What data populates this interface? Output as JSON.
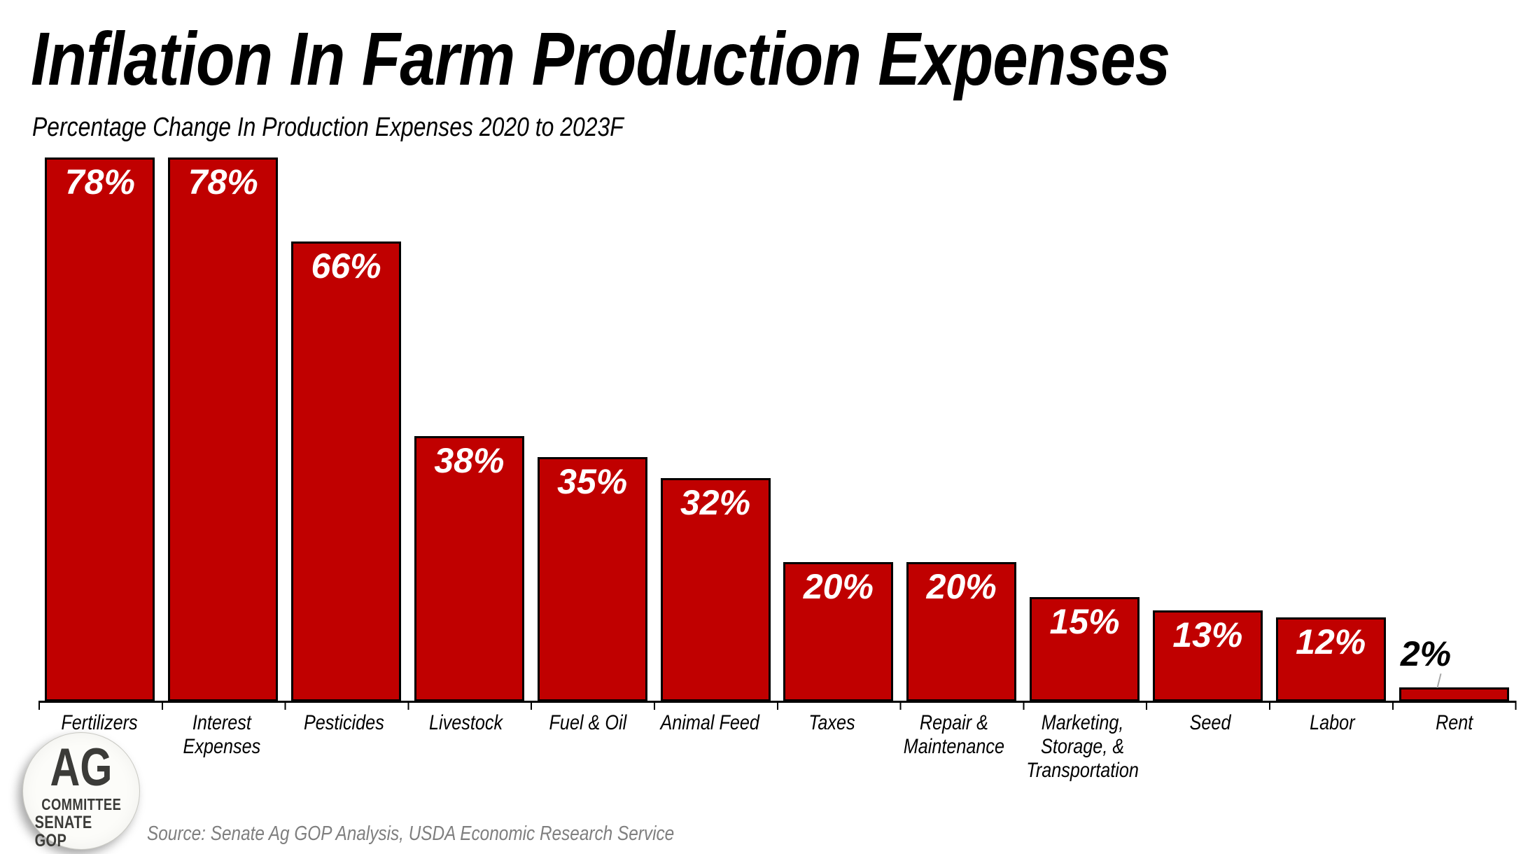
{
  "header": {
    "title": "Inflation In Farm Production Expenses",
    "subtitle": "Percentage Change In Production Expenses 2020 to 2023F"
  },
  "chart_data": {
    "type": "bar",
    "title": "Inflation In Farm Production Expenses",
    "subtitle": "Percentage Change In Production Expenses 2020 to 2023F",
    "categories": [
      "Fertilizers",
      "Interest Expenses",
      "Pesticides",
      "Livestock",
      "Fuel & Oil",
      "Animal Feed",
      "Taxes",
      "Repair & Maintenance",
      "Marketing, Storage, & Transportation",
      "Seed",
      "Labor",
      "Rent"
    ],
    "category_label_lines": [
      [
        "Fertilizers"
      ],
      [
        "Interest",
        "Expenses"
      ],
      [
        "Pesticides"
      ],
      [
        "Livestock"
      ],
      [
        "Fuel & Oil"
      ],
      [
        "Animal Feed"
      ],
      [
        "Taxes"
      ],
      [
        "Repair &",
        "Maintenance"
      ],
      [
        "Marketing,",
        "Storage, &",
        "Transportation"
      ],
      [
        "Seed"
      ],
      [
        "Labor"
      ],
      [
        "Rent"
      ]
    ],
    "values": [
      78,
      78,
      66,
      38,
      35,
      32,
      20,
      20,
      15,
      13,
      12,
      2
    ],
    "value_labels": [
      "78%",
      "78%",
      "66%",
      "38%",
      "35%",
      "32%",
      "20%",
      "20%",
      "15%",
      "13%",
      "12%",
      "2%"
    ],
    "unit": "%",
    "ylim": [
      0,
      78
    ],
    "grid": false,
    "legend": "none",
    "outside_label_category": "Rent",
    "colors": {
      "bar_fill": "#C00000",
      "bar_outline": "#000000",
      "value_label_inside": "#FFFFFF",
      "value_label_outside": "#000000",
      "leader_line": "#A6A6A6",
      "axis": "#000000"
    }
  },
  "logo": {
    "main": "AG",
    "line2": "COMMITTEE",
    "line3": "SENATE GOP",
    "icon": "wheat-field-rows-icon",
    "green_dark": "#2E5F26",
    "green_mid": "#3F7D2C",
    "green_light": "#4E8C3F"
  },
  "footer": {
    "source": "Source: Senate Ag GOP Analysis, USDA Economic Research Service"
  }
}
